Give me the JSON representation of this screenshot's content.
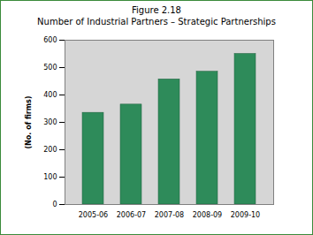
{
  "chart_data": {
    "type": "bar",
    "title": "Figure 2.18",
    "subtitle": "Number of Industrial Partners – Strategic Partnerships",
    "y_label": "(No. of firms)",
    "categories": [
      "2005-06",
      "2006-07",
      "2007-08",
      "2008-09",
      "2009-10"
    ],
    "values": [
      335,
      365,
      457,
      485,
      550
    ],
    "color": "#2e8b5a",
    "ylim": [
      0,
      600
    ],
    "yticks": [
      0,
      100,
      200,
      300,
      400,
      500,
      600
    ],
    "grid": true
  }
}
